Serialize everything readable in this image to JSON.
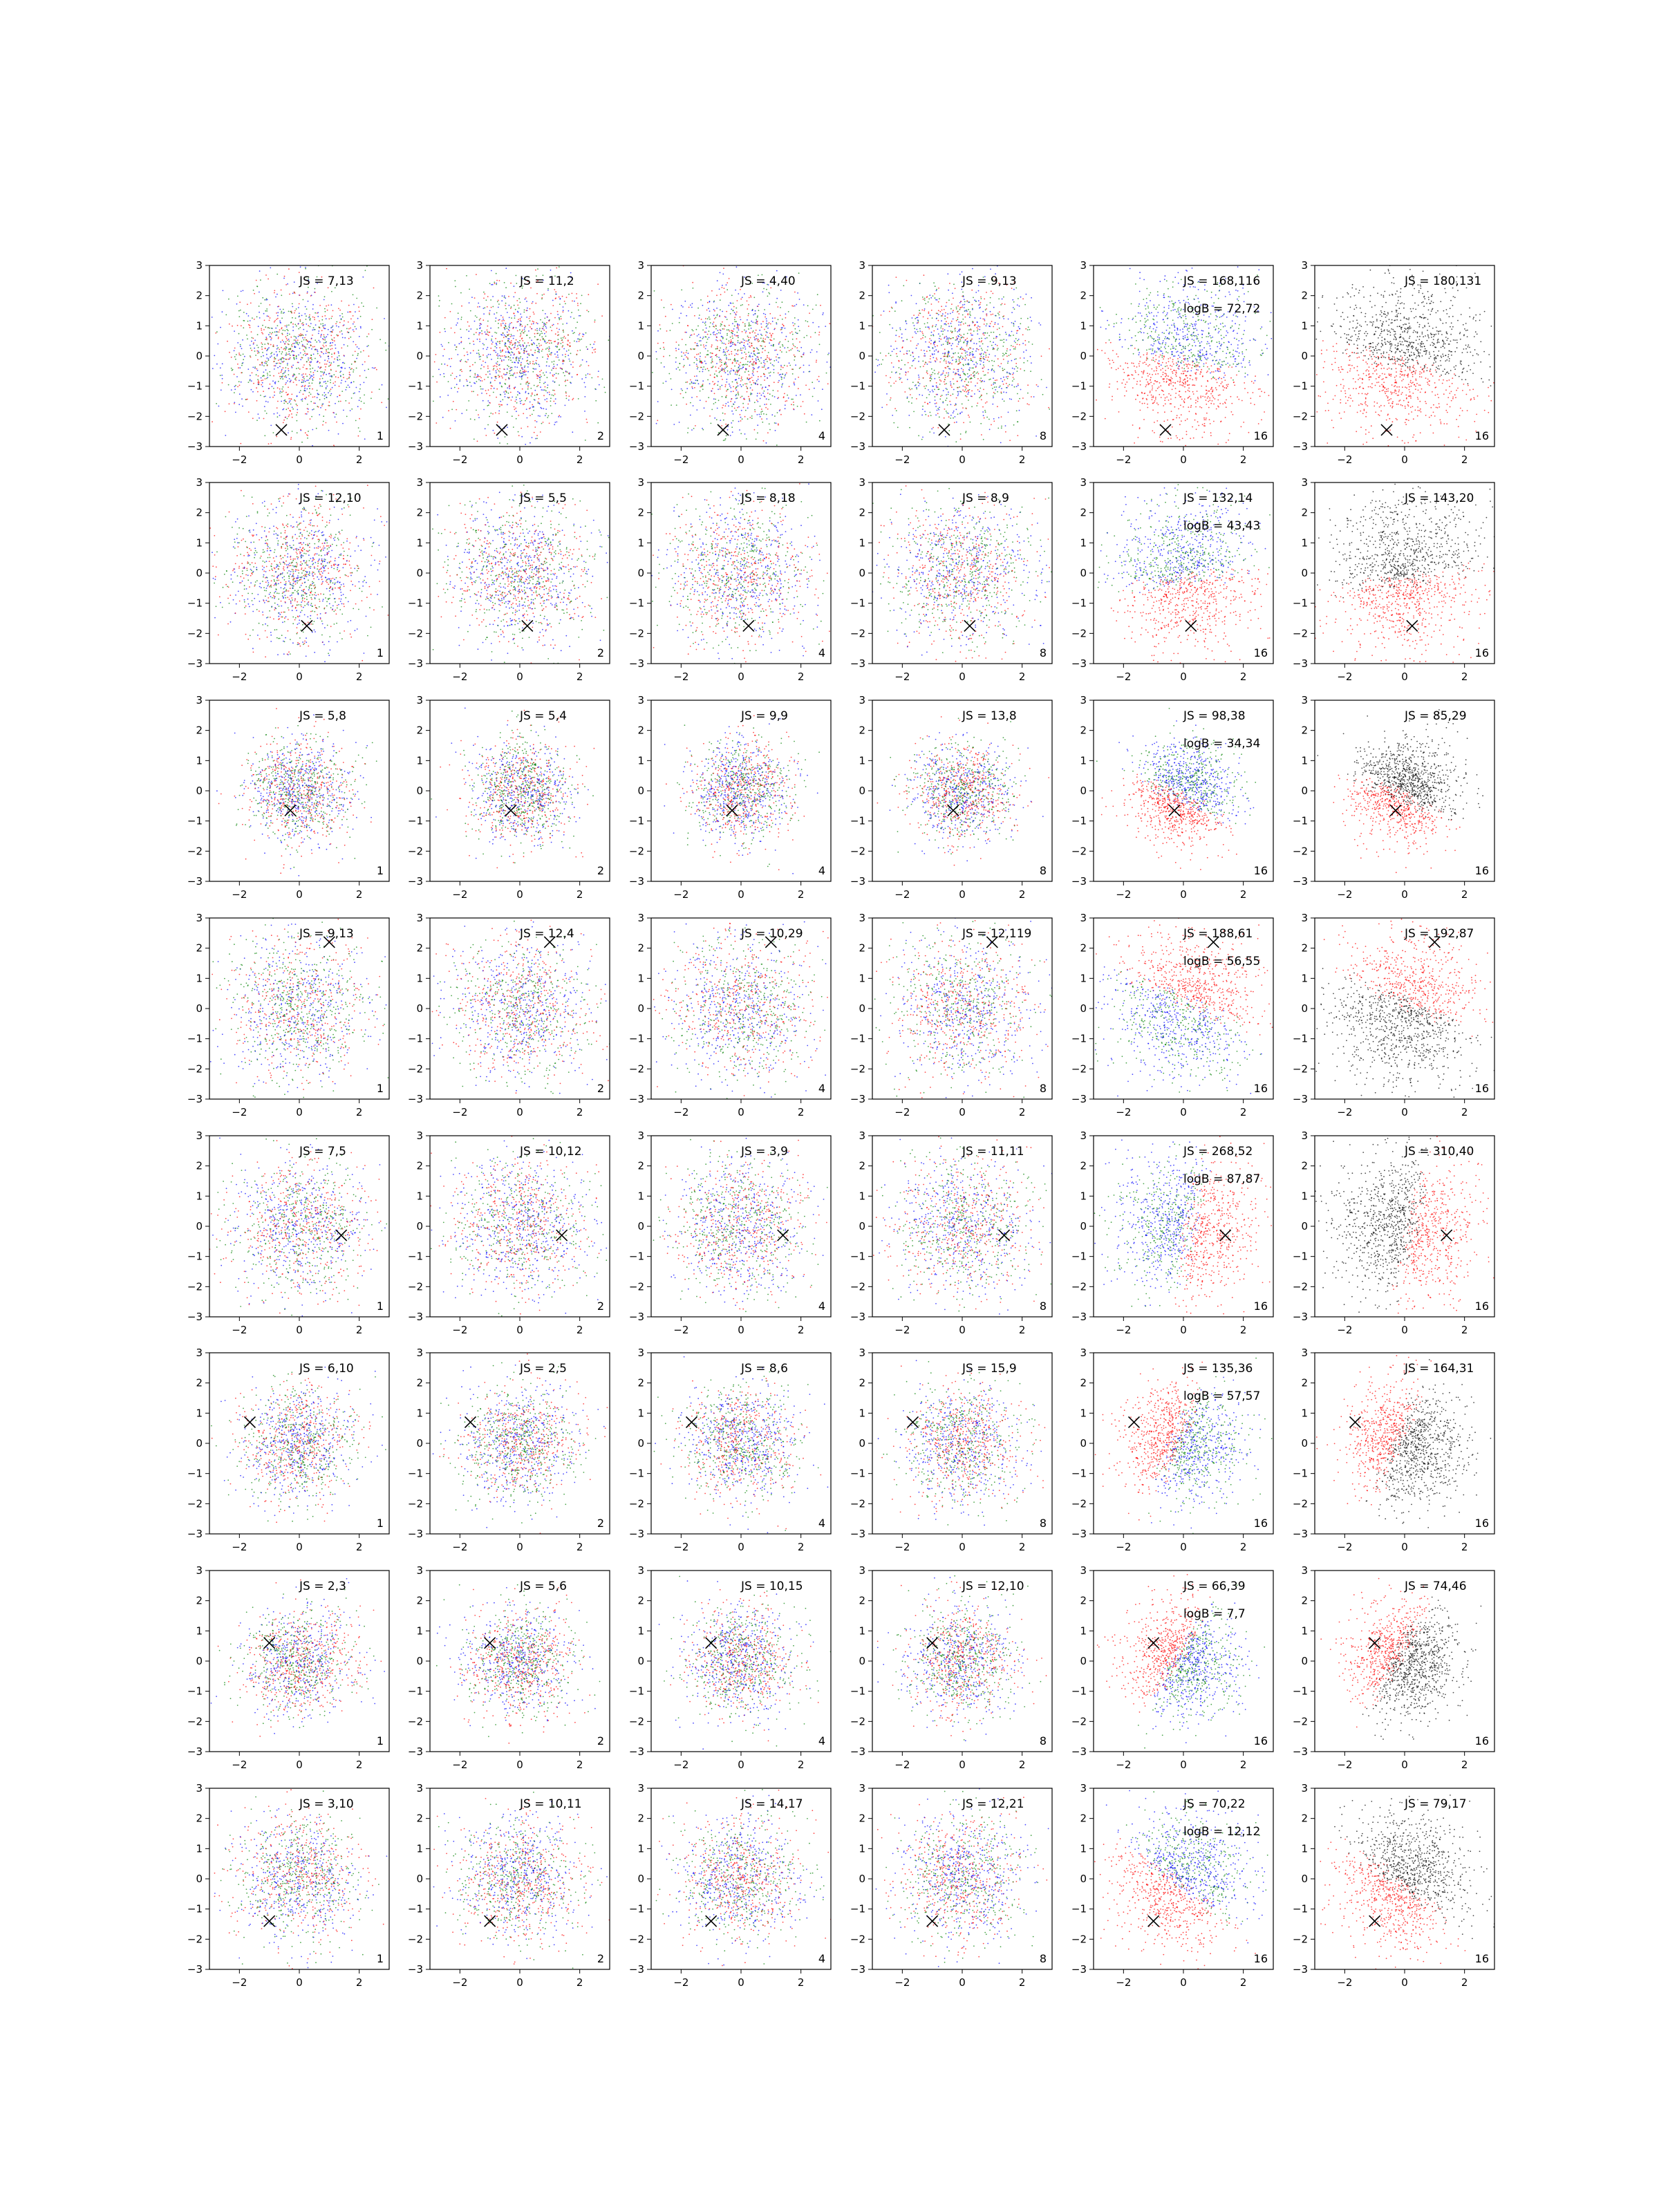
{
  "chart_data": {
    "type": "scatter",
    "layout": {
      "rows": 8,
      "cols": 6
    },
    "axes": {
      "xlim": [
        -3,
        3
      ],
      "ylim": [
        -3,
        3
      ],
      "xticks": [
        -2,
        0,
        2
      ],
      "yticks": [
        -3,
        -2,
        -1,
        0,
        1,
        2,
        3
      ]
    },
    "colors": {
      "red": "#ff0000",
      "green": "#008000",
      "blue": "#0000ff",
      "black": "#000000"
    },
    "rows": [
      {
        "marker": [
          -0.6,
          -2.45
        ],
        "labels": [
          "JS = 7,13",
          "JS = 11,2",
          "JS = 4,40",
          "JS = 9,13",
          "JS = 168,116",
          "JS = 180,131"
        ],
        "logB": "logB = 72,72"
      },
      {
        "marker": [
          0.25,
          -1.75
        ],
        "labels": [
          "JS = 12,10",
          "JS = 5,5",
          "JS = 8,18",
          "JS = 8,9",
          "JS = 132,14",
          "JS = 143,20"
        ],
        "logB": "logB = 43,43"
      },
      {
        "marker": [
          -0.3,
          -0.65
        ],
        "labels": [
          "JS = 5,8",
          "JS = 5,4",
          "JS = 9,9",
          "JS = 13,8",
          "JS = 98,38",
          "JS = 85,29"
        ],
        "logB": "logB = 34,34"
      },
      {
        "marker": [
          1.0,
          2.2
        ],
        "labels": [
          "JS = 9,13",
          "JS = 12,4",
          "JS = 10,29",
          "JS = 12,119",
          "JS = 188,61",
          "JS = 192,87"
        ],
        "logB": "logB = 56,55"
      },
      {
        "marker": [
          1.4,
          -0.3
        ],
        "labels": [
          "JS = 7,5",
          "JS = 10,12",
          "JS = 3,9",
          "JS = 11,11",
          "JS = 268,52",
          "JS = 310,40"
        ],
        "logB": "logB = 87,87"
      },
      {
        "marker": [
          -1.65,
          0.7
        ],
        "labels": [
          "JS = 6,10",
          "JS = 2,5",
          "JS = 8,6",
          "JS = 15,9",
          "JS = 135,36",
          "JS = 164,31"
        ],
        "logB": "logB = 57,57"
      },
      {
        "marker": [
          -1.0,
          0.6
        ],
        "labels": [
          "JS = 2,3",
          "JS = 5,6",
          "JS = 10,15",
          "JS = 12,10",
          "JS = 66,39",
          "JS = 74,46"
        ],
        "logB": "logB = 7,7"
      },
      {
        "marker": [
          -1.0,
          -1.4
        ],
        "labels": [
          "JS = 3,10",
          "JS = 10,11",
          "JS = 14,17",
          "JS = 12,21",
          "JS = 70,22",
          "JS = 79,17"
        ],
        "logB": "logB = 12,12"
      }
    ],
    "columns": [
      {
        "count_label": "1"
      },
      {
        "count_label": "2"
      },
      {
        "count_label": "4"
      },
      {
        "count_label": "8"
      },
      {
        "count_label": "16"
      },
      {
        "count_label": "16"
      }
    ],
    "row_spread": [
      1.25,
      1.2,
      0.85,
      1.2,
      1.15,
      0.95,
      0.9,
      1.05
    ],
    "col_spread_factor": [
      1.0,
      1.0,
      1.0,
      1.0,
      1.0,
      1.0
    ]
  }
}
